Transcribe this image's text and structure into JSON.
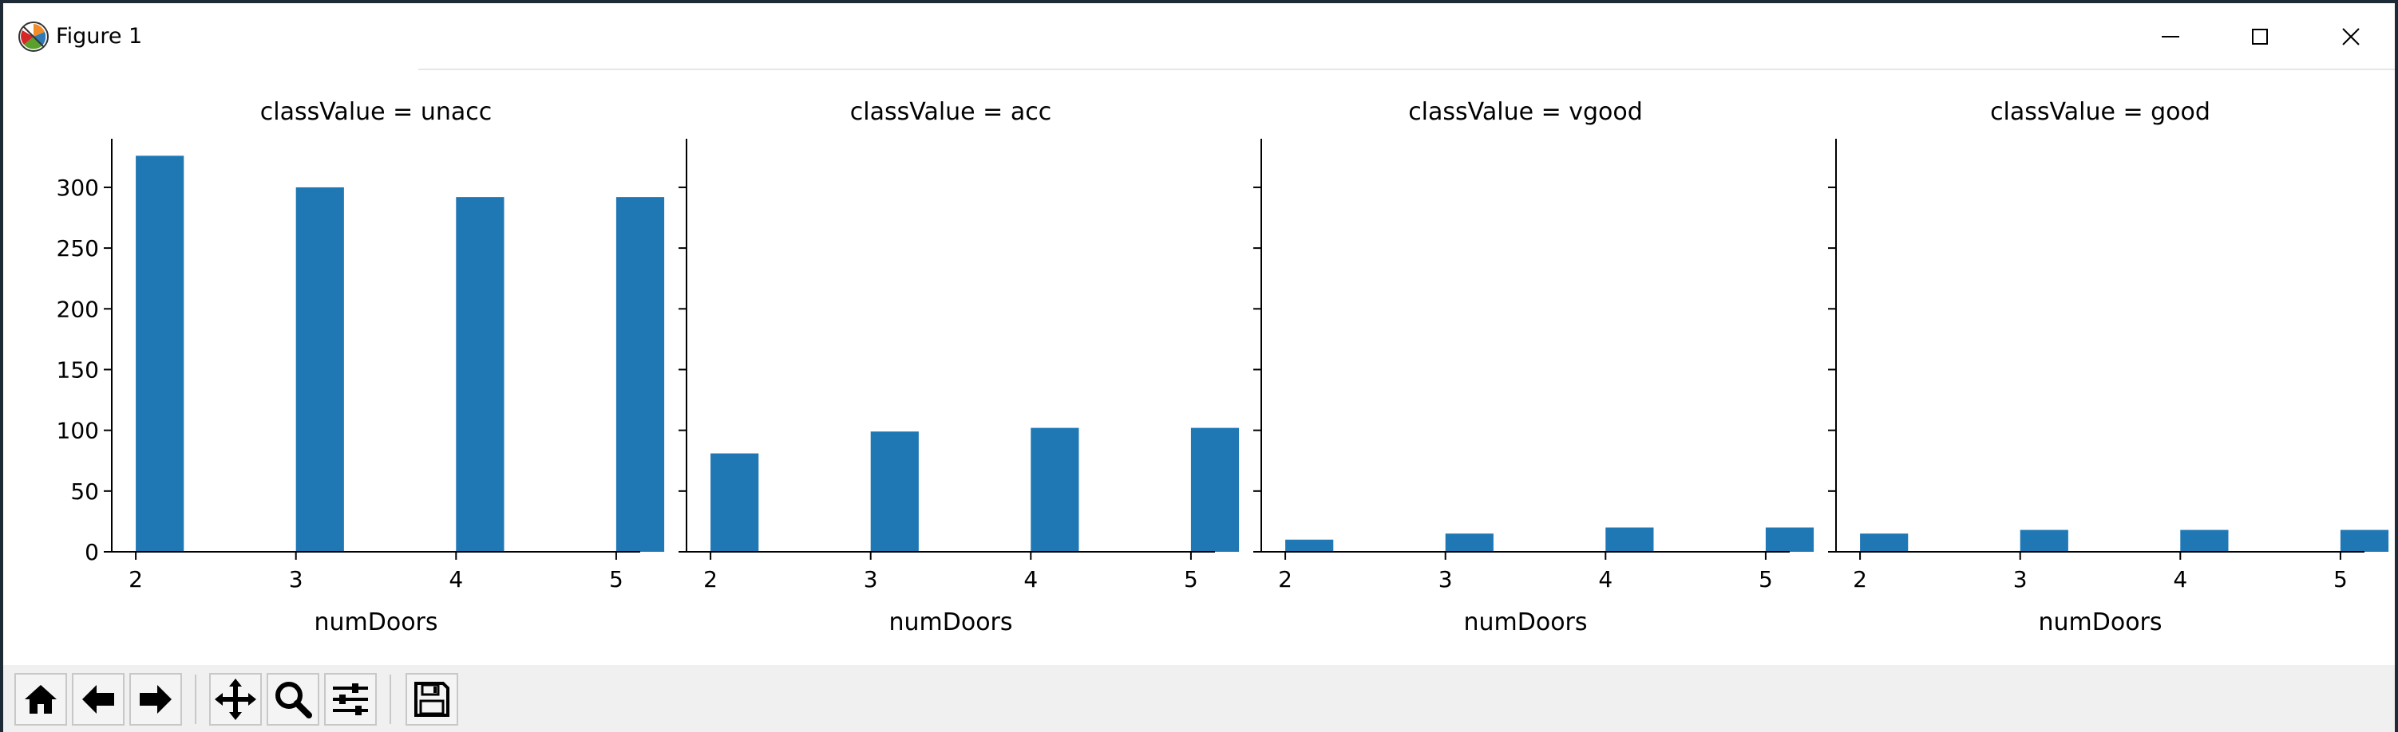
{
  "window": {
    "title": "Figure 1",
    "icon": "matplotlib-logo-icon",
    "controls": [
      "minimize-icon",
      "maximize-icon",
      "close-icon"
    ]
  },
  "toolbar": {
    "buttons": [
      {
        "name": "home-button",
        "icon": "home-icon",
        "tooltip": "Reset original view"
      },
      {
        "name": "back-button",
        "icon": "arrow-left-icon",
        "tooltip": "Back to previous view"
      },
      {
        "name": "forward-button",
        "icon": "arrow-right-icon",
        "tooltip": "Forward to next view"
      },
      {
        "name": "pan-button",
        "icon": "move-icon",
        "tooltip": "Pan axes"
      },
      {
        "name": "zoom-button",
        "icon": "magnifier-icon",
        "tooltip": "Zoom to rectangle"
      },
      {
        "name": "configure-button",
        "icon": "sliders-icon",
        "tooltip": "Configure subplots"
      },
      {
        "name": "save-button",
        "icon": "floppy-disk-icon",
        "tooltip": "Save the figure"
      }
    ]
  },
  "chart_data": [
    {
      "type": "bar",
      "title": "classValue = unacc",
      "xlabel": "numDoors",
      "ylabel": "",
      "categories": [
        "2",
        "3",
        "4",
        "5"
      ],
      "values": [
        326,
        300,
        292,
        292
      ],
      "ylim": [
        0,
        340
      ],
      "yticks": [
        "0",
        "50",
        "100",
        "150",
        "200",
        "250",
        "300"
      ],
      "color": "#1f77b4",
      "grid": false
    },
    {
      "type": "bar",
      "title": "classValue = acc",
      "xlabel": "numDoors",
      "ylabel": "",
      "categories": [
        "2",
        "3",
        "4",
        "5"
      ],
      "values": [
        81,
        99,
        102,
        102
      ],
      "ylim": [
        0,
        340
      ],
      "color": "#1f77b4",
      "grid": false
    },
    {
      "type": "bar",
      "title": "classValue = vgood",
      "xlabel": "numDoors",
      "ylabel": "",
      "categories": [
        "2",
        "3",
        "4",
        "5"
      ],
      "values": [
        10,
        15,
        20,
        20
      ],
      "ylim": [
        0,
        340
      ],
      "color": "#1f77b4",
      "grid": false
    },
    {
      "type": "bar",
      "title": "classValue = good",
      "xlabel": "numDoors",
      "ylabel": "",
      "categories": [
        "2",
        "3",
        "4",
        "5"
      ],
      "values": [
        15,
        18,
        18,
        18
      ],
      "ylim": [
        0,
        340
      ],
      "color": "#1f77b4",
      "grid": false
    }
  ]
}
